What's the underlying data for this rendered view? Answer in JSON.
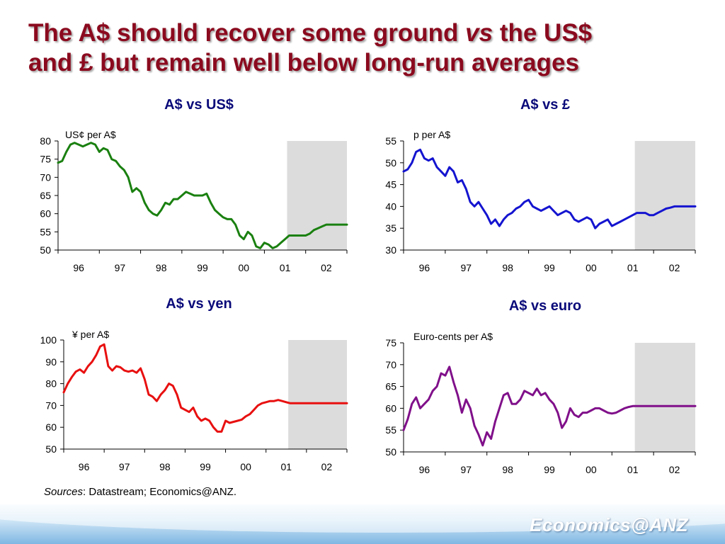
{
  "slide": {
    "title_part1": "The A$ should recover some ground ",
    "title_vs": "vs",
    "title_part2": " the US$",
    "title_line2": "and £ but remain well below long-run averages",
    "sources_label": "Sources",
    "sources_text": ": Datastream; Economics@ANZ.",
    "brand": "Economics@ANZ"
  },
  "colors": {
    "title": "#8b0a1e",
    "chart_title": "#0a0a7a",
    "shade": "#dcdcdc"
  },
  "chart_data": [
    {
      "type": "line",
      "title": "A$ vs US$",
      "ylabel": "US¢ per A$",
      "color": "#1a8010",
      "ylim": [
        50,
        80
      ],
      "yticks": [
        50,
        55,
        60,
        65,
        70,
        75,
        80
      ],
      "xlim": [
        1995.5,
        2002.5
      ],
      "xticks": [
        {
          "x": 1996,
          "label": "96"
        },
        {
          "x": 1997,
          "label": "97"
        },
        {
          "x": 1998,
          "label": "98"
        },
        {
          "x": 1999,
          "label": "99"
        },
        {
          "x": 2000,
          "label": "00"
        },
        {
          "x": 2001,
          "label": "01"
        },
        {
          "x": 2002,
          "label": "02"
        }
      ],
      "forecast_from": 2001.05,
      "x": [
        1995.5,
        1995.6,
        1995.7,
        1995.8,
        1995.9,
        1996.0,
        1996.1,
        1996.2,
        1996.3,
        1996.4,
        1996.5,
        1996.6,
        1996.7,
        1996.8,
        1996.9,
        1997.0,
        1997.1,
        1997.2,
        1997.3,
        1997.4,
        1997.5,
        1997.6,
        1997.7,
        1997.8,
        1997.9,
        1998.0,
        1998.1,
        1998.2,
        1998.3,
        1998.4,
        1998.5,
        1998.6,
        1998.7,
        1998.8,
        1998.9,
        1999.0,
        1999.1,
        1999.2,
        1999.3,
        1999.4,
        1999.5,
        1999.6,
        1999.7,
        1999.8,
        1999.9,
        2000.0,
        2000.1,
        2000.2,
        2000.3,
        2000.4,
        2000.5,
        2000.6,
        2000.7,
        2000.8,
        2000.9,
        2001.0,
        2001.1,
        2001.2,
        2001.3,
        2001.4,
        2001.5,
        2001.6,
        2001.7,
        2001.8,
        2001.9,
        2002.0,
        2002.1,
        2002.2,
        2002.3,
        2002.4,
        2002.5
      ],
      "values": [
        74,
        74.5,
        77,
        79,
        79.5,
        79,
        78.5,
        79,
        79.5,
        79,
        77,
        78,
        77.5,
        75,
        74.5,
        73,
        72,
        70,
        66,
        67,
        66,
        63,
        61,
        60,
        59.5,
        61,
        63,
        62.5,
        64,
        64,
        65,
        66,
        65.5,
        65,
        65,
        65,
        65.5,
        63,
        61,
        60,
        59,
        58.5,
        58.5,
        57,
        54,
        53,
        55,
        54,
        51,
        50.5,
        52,
        51.5,
        50.5,
        51,
        52,
        53,
        54,
        54,
        54,
        54,
        54,
        54.5,
        55.5,
        56,
        56.5,
        57,
        57,
        57,
        57,
        57,
        57
      ]
    },
    {
      "type": "line",
      "title": "A$ vs £",
      "ylabel": "p per A$",
      "color": "#1414d0",
      "ylim": [
        30,
        55
      ],
      "yticks": [
        30,
        35,
        40,
        45,
        50,
        55
      ],
      "xlim": [
        1995.5,
        2002.5
      ],
      "xticks": [
        {
          "x": 1996,
          "label": "96"
        },
        {
          "x": 1997,
          "label": "97"
        },
        {
          "x": 1998,
          "label": "98"
        },
        {
          "x": 1999,
          "label": "99"
        },
        {
          "x": 2000,
          "label": "00"
        },
        {
          "x": 2001,
          "label": "01"
        },
        {
          "x": 2002,
          "label": "02"
        }
      ],
      "forecast_from": 2001.05,
      "x": [
        1995.5,
        1995.6,
        1995.7,
        1995.8,
        1995.9,
        1996.0,
        1996.1,
        1996.2,
        1996.3,
        1996.4,
        1996.5,
        1996.6,
        1996.7,
        1996.8,
        1996.9,
        1997.0,
        1997.1,
        1997.2,
        1997.3,
        1997.4,
        1997.5,
        1997.6,
        1997.7,
        1997.8,
        1997.9,
        1998.0,
        1998.1,
        1998.2,
        1998.3,
        1998.4,
        1998.5,
        1998.6,
        1998.7,
        1998.8,
        1998.9,
        1999.0,
        1999.1,
        1999.2,
        1999.3,
        1999.4,
        1999.5,
        1999.6,
        1999.7,
        1999.8,
        1999.9,
        2000.0,
        2000.1,
        2000.2,
        2000.3,
        2000.4,
        2000.5,
        2000.6,
        2000.7,
        2000.8,
        2000.9,
        2001.0,
        2001.1,
        2001.2,
        2001.3,
        2001.4,
        2001.5,
        2001.6,
        2001.7,
        2001.8,
        2001.9,
        2002.0,
        2002.1,
        2002.2,
        2002.3,
        2002.4,
        2002.5
      ],
      "values": [
        48,
        48.5,
        50,
        52.5,
        53,
        51,
        50.5,
        51,
        49,
        48,
        47,
        49,
        48,
        45.5,
        46,
        44,
        41,
        40,
        41,
        39.5,
        38,
        36,
        37,
        35.5,
        37,
        38,
        38.5,
        39.5,
        40,
        41,
        41.5,
        40,
        39.5,
        39,
        39.5,
        40,
        39,
        38,
        38.5,
        39,
        38.5,
        37,
        36.5,
        37,
        37.5,
        37,
        35,
        36,
        36.5,
        37,
        35.5,
        36,
        36.5,
        37,
        37.5,
        38,
        38.5,
        38.5,
        38.5,
        38,
        38,
        38.5,
        39,
        39.5,
        39.7,
        40,
        40,
        40,
        40,
        40,
        40
      ]
    },
    {
      "type": "line",
      "title": "A$ vs yen",
      "ylabel": "¥ per A$",
      "color": "#e81010",
      "ylim": [
        50,
        100
      ],
      "yticks": [
        50,
        60,
        70,
        80,
        90,
        100
      ],
      "xlim": [
        1995.5,
        2002.5
      ],
      "xticks": [
        {
          "x": 1996,
          "label": "96"
        },
        {
          "x": 1997,
          "label": "97"
        },
        {
          "x": 1998,
          "label": "98"
        },
        {
          "x": 1999,
          "label": "99"
        },
        {
          "x": 2000,
          "label": "00"
        },
        {
          "x": 2001,
          "label": "01"
        },
        {
          "x": 2002,
          "label": "02"
        }
      ],
      "forecast_from": 2001.05,
      "x": [
        1995.5,
        1995.6,
        1995.7,
        1995.8,
        1995.9,
        1996.0,
        1996.1,
        1996.2,
        1996.3,
        1996.4,
        1996.5,
        1996.6,
        1996.7,
        1996.8,
        1996.9,
        1997.0,
        1997.1,
        1997.2,
        1997.3,
        1997.4,
        1997.5,
        1997.6,
        1997.7,
        1997.8,
        1997.9,
        1998.0,
        1998.1,
        1998.2,
        1998.3,
        1998.4,
        1998.5,
        1998.6,
        1998.7,
        1998.8,
        1998.9,
        1999.0,
        1999.1,
        1999.2,
        1999.3,
        1999.4,
        1999.5,
        1999.6,
        1999.7,
        1999.8,
        1999.9,
        2000.0,
        2000.1,
        2000.2,
        2000.3,
        2000.4,
        2000.5,
        2000.6,
        2000.7,
        2000.8,
        2000.9,
        2001.0,
        2001.1,
        2001.2,
        2001.3,
        2001.4,
        2001.5,
        2001.6,
        2001.7,
        2001.8,
        2001.9,
        2002.0,
        2002.1,
        2002.2,
        2002.3,
        2002.4,
        2002.5
      ],
      "values": [
        76,
        80,
        83,
        85.5,
        86.5,
        85,
        88,
        90,
        93,
        97,
        98,
        88,
        86,
        88,
        87.5,
        86,
        85.5,
        86,
        85,
        87,
        82,
        75,
        74,
        72,
        75,
        77,
        80,
        79,
        75,
        69,
        68,
        67,
        69,
        65,
        63,
        64,
        63,
        60,
        58,
        58,
        63,
        62,
        62.5,
        63,
        63.5,
        65,
        66,
        68,
        70,
        71,
        71.5,
        72,
        72,
        72.5,
        72,
        71.5,
        71,
        71,
        71,
        71,
        71,
        71,
        71,
        71,
        71,
        71,
        71,
        71,
        71,
        71,
        71
      ]
    },
    {
      "type": "line",
      "title": "A$ vs euro",
      "ylabel": "Euro-cents per A$",
      "color": "#80108a",
      "ylim": [
        50,
        75
      ],
      "yticks": [
        50,
        55,
        60,
        65,
        70,
        75
      ],
      "xlim": [
        1995.5,
        2002.5
      ],
      "xticks": [
        {
          "x": 1996,
          "label": "96"
        },
        {
          "x": 1997,
          "label": "97"
        },
        {
          "x": 1998,
          "label": "98"
        },
        {
          "x": 1999,
          "label": "99"
        },
        {
          "x": 2000,
          "label": "00"
        },
        {
          "x": 2001,
          "label": "01"
        },
        {
          "x": 2002,
          "label": "02"
        }
      ],
      "forecast_from": 2001.05,
      "x": [
        1995.5,
        1995.6,
        1995.7,
        1995.8,
        1995.9,
        1996.0,
        1996.1,
        1996.2,
        1996.3,
        1996.4,
        1996.5,
        1996.6,
        1996.7,
        1996.8,
        1996.9,
        1997.0,
        1997.1,
        1997.2,
        1997.3,
        1997.4,
        1997.5,
        1997.6,
        1997.7,
        1997.8,
        1997.9,
        1998.0,
        1998.1,
        1998.2,
        1998.3,
        1998.4,
        1998.5,
        1998.6,
        1998.7,
        1998.8,
        1998.9,
        1999.0,
        1999.1,
        1999.2,
        1999.3,
        1999.4,
        1999.5,
        1999.6,
        1999.7,
        1999.8,
        1999.9,
        2000.0,
        2000.1,
        2000.2,
        2000.3,
        2000.4,
        2000.5,
        2000.6,
        2000.7,
        2000.8,
        2000.9,
        2001.0,
        2001.1,
        2001.2,
        2001.3,
        2001.4,
        2001.5,
        2001.6,
        2001.7,
        2001.8,
        2001.9,
        2002.0,
        2002.1,
        2002.2,
        2002.3,
        2002.4,
        2002.5
      ],
      "values": [
        55,
        57.5,
        61,
        62.5,
        60,
        61,
        62,
        64,
        65,
        68,
        67.5,
        69.5,
        66,
        63,
        59,
        62,
        60,
        56,
        54,
        51.5,
        54.5,
        53,
        57,
        60,
        63,
        63.5,
        61,
        61,
        62,
        64,
        63.5,
        63,
        64.5,
        63,
        63.5,
        62,
        61,
        59,
        55.5,
        57,
        60,
        58.5,
        58,
        59,
        59,
        59.5,
        60,
        60,
        59.5,
        59,
        58.8,
        59,
        59.5,
        60,
        60.3,
        60.5,
        60.5,
        60.5,
        60.5,
        60.5,
        60.5,
        60.5,
        60.5,
        60.5,
        60.5,
        60.5,
        60.5,
        60.5,
        60.5,
        60.5,
        60.5
      ]
    }
  ]
}
